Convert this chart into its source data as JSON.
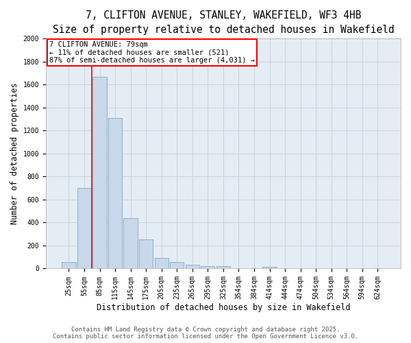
{
  "title1": "7, CLIFTON AVENUE, STANLEY, WAKEFIELD, WF3 4HB",
  "title2": "Size of property relative to detached houses in Wakefield",
  "xlabel": "Distribution of detached houses by size in Wakefield",
  "ylabel": "Number of detached properties",
  "categories": [
    "25sqm",
    "55sqm",
    "85sqm",
    "115sqm",
    "145sqm",
    "175sqm",
    "205sqm",
    "235sqm",
    "265sqm",
    "295sqm",
    "325sqm",
    "354sqm",
    "384sqm",
    "414sqm",
    "444sqm",
    "474sqm",
    "504sqm",
    "534sqm",
    "564sqm",
    "594sqm",
    "624sqm"
  ],
  "values": [
    55,
    700,
    1670,
    1310,
    440,
    255,
    90,
    55,
    35,
    20,
    20,
    0,
    0,
    15,
    0,
    0,
    0,
    0,
    0,
    0,
    0
  ],
  "bar_color": "#c8d8ea",
  "bar_edge_color": "#8aafc8",
  "grid_color": "#c8d4dc",
  "bg_color": "#e4ecf4",
  "red_line_index": 2,
  "annotation_text": "7 CLIFTON AVENUE: 79sqm\n← 11% of detached houses are smaller (521)\n87% of semi-detached houses are larger (4,031) →",
  "annotation_box_color": "#cc0000",
  "ylim": [
    0,
    2000
  ],
  "yticks": [
    0,
    200,
    400,
    600,
    800,
    1000,
    1200,
    1400,
    1600,
    1800,
    2000
  ],
  "footer1": "Contains HM Land Registry data © Crown copyright and database right 2025.",
  "footer2": "Contains public sector information licensed under the Open Government Licence v3.0.",
  "title_fontsize": 10.5,
  "title2_fontsize": 9.5,
  "axis_label_fontsize": 8.5,
  "tick_fontsize": 7,
  "footer_fontsize": 6.5,
  "annotation_fontsize": 7.5
}
